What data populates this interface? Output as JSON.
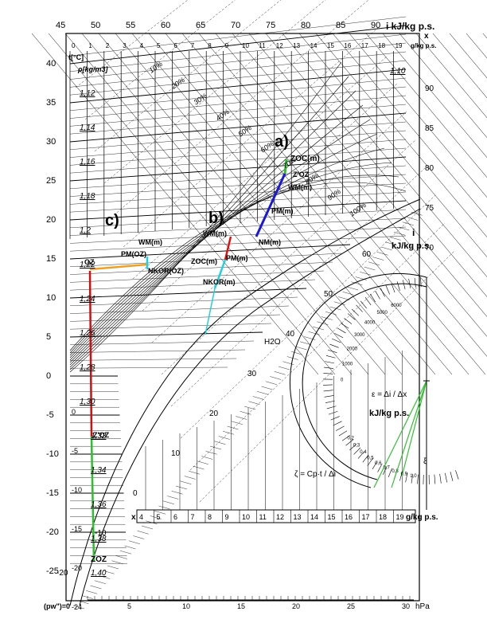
{
  "title_i_unit": "i  kJ/kg p.s.",
  "title_x": "x",
  "title_x_unit": "g/kg p.s.",
  "t_axis_label": "t[°C]",
  "q_label": "ρ[kg/m3]",
  "h2o_label": "H2O",
  "i_unit_right": "i",
  "i_unit_right2": "kJ/kg p.s.",
  "x_bottom_label": "x",
  "x_bottom_unit": "g/kg p.s.",
  "p_axis_label": "(pw\")=0",
  "p_axis_unit": "hPa",
  "top_i_ticks": [
    "45",
    "50",
    "55",
    "60",
    "65",
    "70",
    "75",
    "80",
    "85",
    "90"
  ],
  "top_x_ticks": [
    "0",
    "1",
    "2",
    "3",
    "4",
    "5",
    "6",
    "7",
    "8",
    "9",
    "10",
    "11",
    "12",
    "13",
    "14",
    "15",
    "16",
    "17",
    "18",
    "19"
  ],
  "left_t_ticks": [
    "40",
    "35",
    "30",
    "25",
    "20",
    "15",
    "10",
    "5",
    "0",
    "-5",
    "-10",
    "-15",
    "-20",
    "-25"
  ],
  "left_t_ticks_small": [
    "0",
    "-5",
    "-10",
    "-15",
    "-20",
    "-24"
  ],
  "right_i_ticks": [
    "90",
    "85",
    "80",
    "75",
    "70"
  ],
  "diag_i_ticks": [
    "60",
    "50",
    "40",
    "30",
    "20",
    "10",
    "0",
    "-10",
    "-20"
  ],
  "bottom_x_ticks": [
    "4",
    "5",
    "6",
    "7",
    "8",
    "9",
    "10",
    "11",
    "12",
    "13",
    "14",
    "15",
    "16",
    "17",
    "18",
    "19"
  ],
  "bottom_p_ticks": [
    "5",
    "10",
    "15",
    "20",
    "25",
    "30"
  ],
  "rh_labels": [
    "10%",
    "20%",
    "30%",
    "40%",
    "50%",
    "60%",
    "70%",
    "80%",
    "90%",
    "100%"
  ],
  "density_labels": [
    "1,10",
    "1,12",
    "1,14",
    "1,16",
    "1,18",
    "1,2",
    "1,22",
    "1,24",
    "1,26",
    "1,28",
    "1,30",
    "1,32",
    "1,34",
    "1,36",
    "1,38",
    "1,40"
  ],
  "case_labels": {
    "a": "a)",
    "b": "b)",
    "c": "c)"
  },
  "points": {
    "z_oc_m": "ZOC(m)",
    "z_oc": "Z'OC",
    "w_m_a": "WM(m)",
    "p_m_a": "PM(m)",
    "n_m_a": "NM(m)",
    "w_m_b": "WM(m)",
    "p_m_b": "PM(m)",
    "z_oc_b": "ZOC(m)",
    "n_kor_b": "NKOR(m)",
    "w_m_c": "WM(m)",
    "p_m_c": "PM(OZ)",
    "n_kor_c": "NKOR(OZ)",
    "o_c": "OZ",
    "t_z_oz": "Z'OZ",
    "z_oz": "ZOZ"
  },
  "protractor": {
    "epsilon_label": "ε = Δi / Δx",
    "epsilon_unit": "kJ/kg p.s.",
    "zeta_label": "ζ = Cp·t / Δi",
    "outer_ticks": [
      "6000",
      "5000",
      "4000",
      "3000",
      "2000",
      "1000",
      "0"
    ],
    "inner_ticks": [
      "0,2",
      "0,3",
      "0,4",
      "0,5",
      "0,6",
      "0,7",
      "0,8",
      "0,9",
      "1,0"
    ],
    "xi_label": "ξ"
  },
  "colors": {
    "line_a": "#1a1ad6",
    "line_b": "#e01010",
    "line_c_orange": "#f0a020",
    "line_c_red": "#d01010",
    "line_c_green": "#2cc02c",
    "cyan": "#20d0e0",
    "green_protractor": "#30c030"
  }
}
